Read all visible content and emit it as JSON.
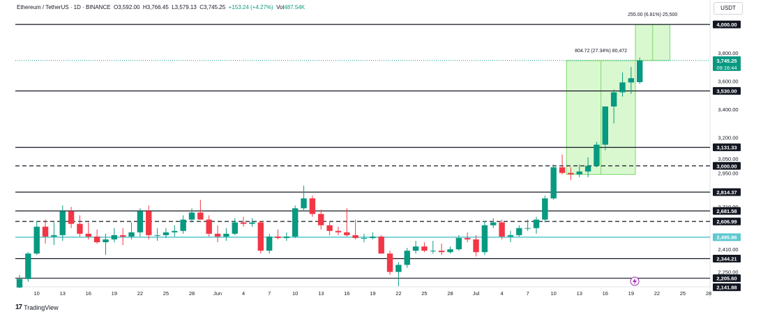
{
  "header": {
    "symbol": "Ethereum / TetherUS · 1D · BINANCE",
    "open_label": "O",
    "open": "3,592.00",
    "high_label": "H",
    "high": "3,766.45",
    "low_label": "L",
    "low": "3,579.13",
    "close_label": "C",
    "close": "3,745.25",
    "change": "+153.24 (+4.27%)",
    "vol_label": "Vol",
    "volume": "487.54K"
  },
  "currency_button": "USDT",
  "logo_text": "TradingView",
  "chart_data": {
    "type": "candlestick",
    "ylim": [
      2140,
      4040
    ],
    "grid": false,
    "x_tick_labels": [
      "10",
      "13",
      "16",
      "19",
      "22",
      "25",
      "28",
      "Jun",
      "4",
      "7",
      "10",
      "13",
      "16",
      "19",
      "22",
      "25",
      "28",
      "Jul",
      "4",
      "7",
      "10",
      "13",
      "16",
      "19",
      "22",
      "25",
      "28"
    ],
    "y_tick_labels": [
      {
        "value": 3800,
        "label": "3,800.00"
      },
      {
        "value": 3600,
        "label": "3,600.00"
      },
      {
        "value": 3400,
        "label": "3,400.00"
      },
      {
        "value": 3200,
        "label": "3,200.00"
      },
      {
        "value": 3050,
        "label": "3,050.00"
      },
      {
        "value": 2950,
        "label": "2,950.00"
      },
      {
        "value": 2710,
        "label": "2,710.00"
      },
      {
        "value": 2410,
        "label": "2,410.00"
      },
      {
        "value": 2250,
        "label": "2,250.00"
      }
    ],
    "horizontal_levels": [
      {
        "value": 4000,
        "label": "4,000.00",
        "style": "solid",
        "color": "#131722"
      },
      {
        "value": 3530,
        "label": "3,530.00",
        "style": "solid",
        "color": "#131722"
      },
      {
        "value": 3131.33,
        "label": "3,131.33",
        "style": "solid",
        "color": "#131722"
      },
      {
        "value": 3000,
        "label": "3,000.00",
        "style": "dashed",
        "color": "#131722"
      },
      {
        "value": 2814.37,
        "label": "2,814.37",
        "style": "solid",
        "color": "#131722"
      },
      {
        "value": 2681.58,
        "label": "2,681.58",
        "style": "solid",
        "color": "#131722"
      },
      {
        "value": 2606.99,
        "label": "2,606.99",
        "style": "dashed",
        "color": "#131722"
      },
      {
        "value": 2495.86,
        "label": "2,495.86",
        "style": "solid",
        "color": "#5ec8d0"
      },
      {
        "value": 2344.21,
        "label": "2,344.21",
        "style": "solid",
        "color": "#131722"
      },
      {
        "value": 2205.6,
        "label": "2,205.60",
        "style": "solid",
        "color": "#131722"
      },
      {
        "value": 2141.88,
        "label": "2,141.88",
        "style": "none",
        "color": "#131722"
      }
    ],
    "last_price": {
      "value": 3745.25,
      "label": "3,745.25",
      "countdown": "09:16:44",
      "color": "#089981"
    },
    "measure_boxes": [
      {
        "from_index": 64,
        "to_index": 71,
        "y_from": 2940,
        "y_to": 3745,
        "label": "804.72 (27.34%) 80,472"
      },
      {
        "from_index": 72,
        "to_index": 75,
        "y_from": 3745,
        "y_to": 4000,
        "label": "255.00 (6.81%) 25,500"
      }
    ],
    "colors": {
      "up": "#089981",
      "down": "#f23645",
      "measure_fill": "#ccf5c0",
      "measure_border": "#7bd96a"
    },
    "candles": [
      {
        "o": 2140,
        "h": 2230,
        "l": 2135,
        "c": 2200
      },
      {
        "o": 2200,
        "h": 2390,
        "l": 2180,
        "c": 2380
      },
      {
        "o": 2380,
        "h": 2610,
        "l": 2370,
        "c": 2570
      },
      {
        "o": 2570,
        "h": 2620,
        "l": 2450,
        "c": 2500
      },
      {
        "o": 2500,
        "h": 2600,
        "l": 2440,
        "c": 2510
      },
      {
        "o": 2510,
        "h": 2720,
        "l": 2470,
        "c": 2680
      },
      {
        "o": 2680,
        "h": 2710,
        "l": 2560,
        "c": 2590
      },
      {
        "o": 2590,
        "h": 2650,
        "l": 2500,
        "c": 2520
      },
      {
        "o": 2520,
        "h": 2600,
        "l": 2480,
        "c": 2500
      },
      {
        "o": 2500,
        "h": 2550,
        "l": 2450,
        "c": 2460
      },
      {
        "o": 2460,
        "h": 2520,
        "l": 2370,
        "c": 2480
      },
      {
        "o": 2480,
        "h": 2560,
        "l": 2460,
        "c": 2510
      },
      {
        "o": 2510,
        "h": 2560,
        "l": 2440,
        "c": 2500
      },
      {
        "o": 2500,
        "h": 2600,
        "l": 2480,
        "c": 2530
      },
      {
        "o": 2530,
        "h": 2700,
        "l": 2500,
        "c": 2680
      },
      {
        "o": 2680,
        "h": 2720,
        "l": 2480,
        "c": 2510
      },
      {
        "o": 2510,
        "h": 2560,
        "l": 2470,
        "c": 2510
      },
      {
        "o": 2510,
        "h": 2560,
        "l": 2490,
        "c": 2530
      },
      {
        "o": 2530,
        "h": 2580,
        "l": 2500,
        "c": 2540
      },
      {
        "o": 2540,
        "h": 2650,
        "l": 2520,
        "c": 2620
      },
      {
        "o": 2620,
        "h": 2700,
        "l": 2600,
        "c": 2670
      },
      {
        "o": 2670,
        "h": 2760,
        "l": 2620,
        "c": 2620
      },
      {
        "o": 2620,
        "h": 2650,
        "l": 2500,
        "c": 2520
      },
      {
        "o": 2520,
        "h": 2580,
        "l": 2460,
        "c": 2500
      },
      {
        "o": 2500,
        "h": 2560,
        "l": 2470,
        "c": 2520
      },
      {
        "o": 2520,
        "h": 2630,
        "l": 2510,
        "c": 2600
      },
      {
        "o": 2600,
        "h": 2640,
        "l": 2570,
        "c": 2590
      },
      {
        "o": 2590,
        "h": 2630,
        "l": 2570,
        "c": 2600
      },
      {
        "o": 2600,
        "h": 2610,
        "l": 2380,
        "c": 2400
      },
      {
        "o": 2400,
        "h": 2520,
        "l": 2380,
        "c": 2500
      },
      {
        "o": 2500,
        "h": 2550,
        "l": 2480,
        "c": 2490
      },
      {
        "o": 2490,
        "h": 2530,
        "l": 2470,
        "c": 2500
      },
      {
        "o": 2500,
        "h": 2720,
        "l": 2490,
        "c": 2700
      },
      {
        "o": 2700,
        "h": 2860,
        "l": 2680,
        "c": 2770
      },
      {
        "o": 2770,
        "h": 2790,
        "l": 2640,
        "c": 2660
      },
      {
        "o": 2660,
        "h": 2690,
        "l": 2550,
        "c": 2580
      },
      {
        "o": 2580,
        "h": 2610,
        "l": 2510,
        "c": 2540
      },
      {
        "o": 2540,
        "h": 2570,
        "l": 2510,
        "c": 2530
      },
      {
        "o": 2530,
        "h": 2700,
        "l": 2500,
        "c": 2510
      },
      {
        "o": 2510,
        "h": 2620,
        "l": 2480,
        "c": 2490
      },
      {
        "o": 2490,
        "h": 2520,
        "l": 2460,
        "c": 2490
      },
      {
        "o": 2490,
        "h": 2530,
        "l": 2480,
        "c": 2500
      },
      {
        "o": 2500,
        "h": 2510,
        "l": 2380,
        "c": 2380
      },
      {
        "o": 2380,
        "h": 2400,
        "l": 2230,
        "c": 2250
      },
      {
        "o": 2250,
        "h": 2320,
        "l": 2150,
        "c": 2300
      },
      {
        "o": 2300,
        "h": 2420,
        "l": 2280,
        "c": 2400
      },
      {
        "o": 2400,
        "h": 2470,
        "l": 2380,
        "c": 2430
      },
      {
        "o": 2430,
        "h": 2460,
        "l": 2390,
        "c": 2400
      },
      {
        "o": 2400,
        "h": 2470,
        "l": 2380,
        "c": 2400
      },
      {
        "o": 2400,
        "h": 2450,
        "l": 2370,
        "c": 2390
      },
      {
        "o": 2390,
        "h": 2430,
        "l": 2380,
        "c": 2410
      },
      {
        "o": 2410,
        "h": 2510,
        "l": 2400,
        "c": 2490
      },
      {
        "o": 2490,
        "h": 2530,
        "l": 2460,
        "c": 2480
      },
      {
        "o": 2480,
        "h": 2510,
        "l": 2360,
        "c": 2390
      },
      {
        "o": 2390,
        "h": 2610,
        "l": 2370,
        "c": 2580
      },
      {
        "o": 2580,
        "h": 2630,
        "l": 2560,
        "c": 2600
      },
      {
        "o": 2600,
        "h": 2620,
        "l": 2480,
        "c": 2500
      },
      {
        "o": 2500,
        "h": 2540,
        "l": 2460,
        "c": 2510
      },
      {
        "o": 2510,
        "h": 2580,
        "l": 2500,
        "c": 2560
      },
      {
        "o": 2560,
        "h": 2620,
        "l": 2540,
        "c": 2560
      },
      {
        "o": 2560,
        "h": 2640,
        "l": 2520,
        "c": 2620
      },
      {
        "o": 2620,
        "h": 2790,
        "l": 2600,
        "c": 2770
      },
      {
        "o": 2770,
        "h": 3010,
        "l": 2760,
        "c": 2990
      },
      {
        "o": 2990,
        "h": 3080,
        "l": 2940,
        "c": 2950
      },
      {
        "o": 2950,
        "h": 2990,
        "l": 2900,
        "c": 2940
      },
      {
        "o": 2940,
        "h": 3010,
        "l": 2920,
        "c": 2960
      },
      {
        "o": 2960,
        "h": 3060,
        "l": 2920,
        "c": 3000
      },
      {
        "o": 3000,
        "h": 3170,
        "l": 2990,
        "c": 3150
      },
      {
        "o": 3150,
        "h": 3420,
        "l": 3110,
        "c": 3420
      },
      {
        "o": 3420,
        "h": 3540,
        "l": 3300,
        "c": 3520
      },
      {
        "o": 3520,
        "h": 3660,
        "l": 3490,
        "c": 3590
      },
      {
        "o": 3590,
        "h": 3700,
        "l": 3510,
        "c": 3620
      },
      {
        "o": 3592,
        "h": 3766.45,
        "l": 3579.13,
        "c": 3745.25
      }
    ]
  }
}
